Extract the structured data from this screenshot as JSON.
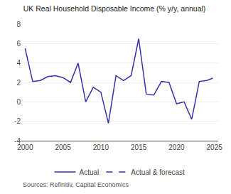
{
  "chart_data": {
    "type": "line",
    "title": "UK Real Household Disposable Income (% y/y, annual)",
    "annotations": [
      "Sources: Refinitiv, Capital Economics"
    ],
    "series": [
      {
        "name": "Actual",
        "color": "#3333aa",
        "line_style": "solid",
        "x": [
          2000,
          2001,
          2002,
          2003,
          2004,
          2005,
          2006,
          2007,
          2008,
          2009,
          2010,
          2011,
          2012,
          2013,
          2014,
          2015,
          2016,
          2017,
          2018,
          2019,
          2020,
          2021,
          2022,
          2023,
          2024
        ],
        "values": [
          5.5,
          2.1,
          2.2,
          2.6,
          2.7,
          2.5,
          2.0,
          4.0,
          0.0,
          1.5,
          1.0,
          -2.2,
          2.7,
          2.2,
          2.7,
          6.5,
          0.8,
          0.7,
          2.1,
          2.0,
          -0.2,
          0.0,
          -1.8,
          2.1,
          2.2
        ]
      },
      {
        "name": "Actual & forecast",
        "color": "#3333aa",
        "line_style": "dashed",
        "x": [
          2024,
          2025
        ],
        "values": [
          2.2,
          2.5
        ]
      }
    ],
    "xlim": [
      1999.5,
      2025.5
    ],
    "xticks": [
      2000,
      2005,
      2010,
      2015,
      2020,
      2025
    ],
    "ylim": [
      -4,
      8
    ],
    "yticks": [
      -4,
      -2,
      0,
      2,
      4,
      6,
      8
    ],
    "grid": "y",
    "legend": "bottom"
  }
}
